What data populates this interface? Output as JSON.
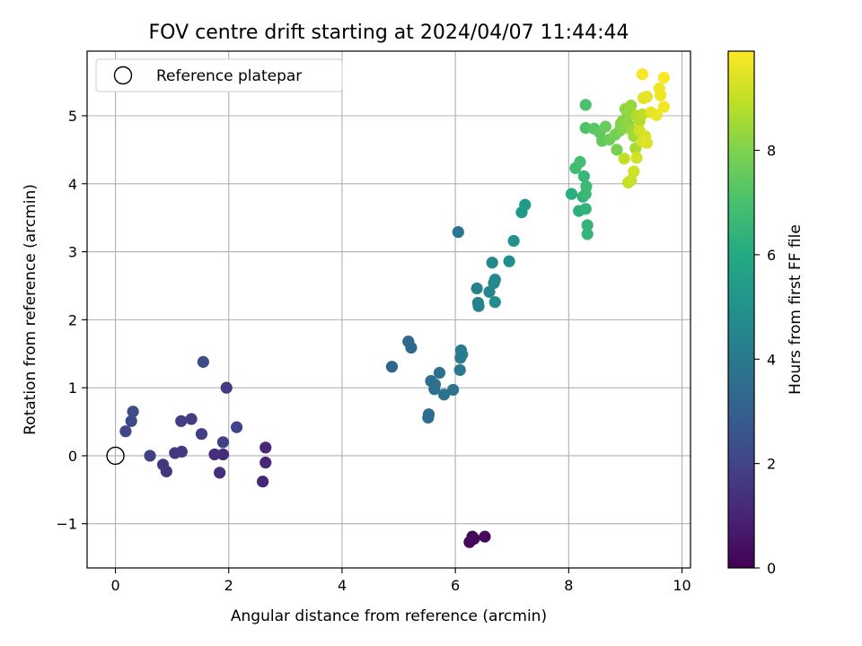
{
  "chart_data": {
    "type": "scatter",
    "title": "FOV centre drift starting at 2024/04/07 11:44:44",
    "xlabel": "Angular distance from reference (arcmin)",
    "ylabel": "Rotation from reference (arcmin)",
    "xlim": [
      -0.5,
      10.15
    ],
    "ylim": [
      -1.65,
      5.95
    ],
    "xticks": [
      0,
      2,
      4,
      6,
      8,
      10
    ],
    "yticks": [
      -1,
      0,
      1,
      2,
      3,
      4,
      5
    ],
    "xtick_labels": [
      "0",
      "2",
      "4",
      "6",
      "8",
      "10"
    ],
    "ytick_labels": [
      "−1",
      "0",
      "1",
      "2",
      "3",
      "4",
      "5"
    ],
    "grid": true,
    "legend": {
      "placement": "top-left",
      "label": "Reference platepar"
    },
    "reference_point": {
      "x": 0,
      "y": 0
    },
    "colorbar": {
      "label": "Hours from first FF file",
      "colormap": "viridis",
      "range": [
        0,
        9.9
      ],
      "ticks": [
        0,
        2,
        4,
        6,
        8
      ],
      "tick_labels": [
        "0",
        "2",
        "4",
        "6",
        "8"
      ]
    },
    "points": [
      {
        "x": 6.3,
        "y": -1.19,
        "c": 0.1
      },
      {
        "x": 6.25,
        "y": -1.27,
        "c": 0.15
      },
      {
        "x": 6.52,
        "y": -1.19,
        "c": 0.2
      },
      {
        "x": 6.33,
        "y": -1.22,
        "c": 0.25
      },
      {
        "x": 2.6,
        "y": -0.38,
        "c": 1.1
      },
      {
        "x": 2.65,
        "y": -0.1,
        "c": 1.12
      },
      {
        "x": 2.65,
        "y": 0.12,
        "c": 1.15
      },
      {
        "x": 1.9,
        "y": 0.02,
        "c": 1.25
      },
      {
        "x": 1.75,
        "y": 0.02,
        "c": 1.3
      },
      {
        "x": 1.84,
        "y": -0.25,
        "c": 1.35
      },
      {
        "x": 0.9,
        "y": -0.23,
        "c": 1.5
      },
      {
        "x": 0.84,
        "y": -0.13,
        "c": 1.55
      },
      {
        "x": 1.05,
        "y": 0.04,
        "c": 1.6
      },
      {
        "x": 1.17,
        "y": 0.06,
        "c": 1.65
      },
      {
        "x": 1.96,
        "y": 1.0,
        "c": 1.7
      },
      {
        "x": 1.16,
        "y": 0.51,
        "c": 1.75
      },
      {
        "x": 1.34,
        "y": 0.54,
        "c": 1.8
      },
      {
        "x": 1.52,
        "y": 0.32,
        "c": 1.85
      },
      {
        "x": 0.61,
        "y": 0.0,
        "c": 1.9
      },
      {
        "x": 1.9,
        "y": 0.2,
        "c": 1.95
      },
      {
        "x": 2.14,
        "y": 0.42,
        "c": 2.0
      },
      {
        "x": 0.18,
        "y": 0.36,
        "c": 2.1
      },
      {
        "x": 0.28,
        "y": 0.51,
        "c": 2.2
      },
      {
        "x": 0.31,
        "y": 0.65,
        "c": 2.3
      },
      {
        "x": 1.55,
        "y": 1.38,
        "c": 2.4
      },
      {
        "x": 4.88,
        "y": 1.31,
        "c": 3.2
      },
      {
        "x": 5.17,
        "y": 1.68,
        "c": 3.3
      },
      {
        "x": 5.22,
        "y": 1.59,
        "c": 3.35
      },
      {
        "x": 5.52,
        "y": 0.56,
        "c": 3.45
      },
      {
        "x": 5.53,
        "y": 0.61,
        "c": 3.5
      },
      {
        "x": 5.57,
        "y": 1.1,
        "c": 3.55
      },
      {
        "x": 5.63,
        "y": 0.98,
        "c": 3.6
      },
      {
        "x": 5.64,
        "y": 1.05,
        "c": 3.65
      },
      {
        "x": 5.72,
        "y": 1.22,
        "c": 3.7
      },
      {
        "x": 5.8,
        "y": 0.9,
        "c": 3.75
      },
      {
        "x": 5.96,
        "y": 0.97,
        "c": 3.8
      },
      {
        "x": 6.05,
        "y": 3.29,
        "c": 3.9
      },
      {
        "x": 6.08,
        "y": 1.26,
        "c": 3.95
      },
      {
        "x": 6.09,
        "y": 1.44,
        "c": 4.0
      },
      {
        "x": 6.1,
        "y": 1.55,
        "c": 4.05
      },
      {
        "x": 6.12,
        "y": 1.49,
        "c": 4.1
      },
      {
        "x": 6.38,
        "y": 2.46,
        "c": 4.3
      },
      {
        "x": 6.4,
        "y": 2.25,
        "c": 4.35
      },
      {
        "x": 6.41,
        "y": 2.2,
        "c": 4.4
      },
      {
        "x": 6.6,
        "y": 2.41,
        "c": 4.5
      },
      {
        "x": 6.65,
        "y": 2.84,
        "c": 4.6
      },
      {
        "x": 6.68,
        "y": 2.54,
        "c": 4.65
      },
      {
        "x": 6.7,
        "y": 2.59,
        "c": 4.7
      },
      {
        "x": 6.7,
        "y": 2.26,
        "c": 4.75
      },
      {
        "x": 6.95,
        "y": 2.86,
        "c": 4.9
      },
      {
        "x": 7.03,
        "y": 3.16,
        "c": 5.0
      },
      {
        "x": 7.17,
        "y": 3.58,
        "c": 5.3
      },
      {
        "x": 7.23,
        "y": 3.69,
        "c": 5.4
      },
      {
        "x": 8.05,
        "y": 3.85,
        "c": 6.2
      },
      {
        "x": 8.18,
        "y": 3.6,
        "c": 6.3
      },
      {
        "x": 8.25,
        "y": 3.81,
        "c": 6.35
      },
      {
        "x": 8.3,
        "y": 3.63,
        "c": 6.4
      },
      {
        "x": 8.33,
        "y": 3.39,
        "c": 6.45
      },
      {
        "x": 8.33,
        "y": 3.26,
        "c": 6.5
      },
      {
        "x": 8.27,
        "y": 4.11,
        "c": 6.6
      },
      {
        "x": 8.3,
        "y": 3.85,
        "c": 6.65
      },
      {
        "x": 8.31,
        "y": 3.96,
        "c": 6.7
      },
      {
        "x": 8.12,
        "y": 4.23,
        "c": 6.8
      },
      {
        "x": 8.2,
        "y": 4.32,
        "c": 6.9
      },
      {
        "x": 8.3,
        "y": 5.16,
        "c": 7.0
      },
      {
        "x": 8.3,
        "y": 4.82,
        "c": 7.1
      },
      {
        "x": 8.45,
        "y": 4.81,
        "c": 7.3
      },
      {
        "x": 8.55,
        "y": 4.75,
        "c": 7.4
      },
      {
        "x": 8.59,
        "y": 4.63,
        "c": 7.5
      },
      {
        "x": 8.65,
        "y": 4.84,
        "c": 7.6
      },
      {
        "x": 8.72,
        "y": 4.65,
        "c": 7.7
      },
      {
        "x": 8.82,
        "y": 4.72,
        "c": 7.8
      },
      {
        "x": 8.85,
        "y": 4.5,
        "c": 7.85
      },
      {
        "x": 8.9,
        "y": 4.78,
        "c": 7.9
      },
      {
        "x": 8.92,
        "y": 4.88,
        "c": 8.0
      },
      {
        "x": 8.95,
        "y": 4.92,
        "c": 8.05
      },
      {
        "x": 8.98,
        "y": 4.82,
        "c": 8.1
      },
      {
        "x": 9.0,
        "y": 5.1,
        "c": 8.15
      },
      {
        "x": 9.03,
        "y": 4.98,
        "c": 8.2
      },
      {
        "x": 9.05,
        "y": 4.87,
        "c": 8.25
      },
      {
        "x": 9.08,
        "y": 5.06,
        "c": 8.3
      },
      {
        "x": 9.1,
        "y": 5.15,
        "c": 8.35
      },
      {
        "x": 9.12,
        "y": 4.78,
        "c": 8.4
      },
      {
        "x": 9.15,
        "y": 4.7,
        "c": 8.5
      },
      {
        "x": 9.18,
        "y": 4.52,
        "c": 8.6
      },
      {
        "x": 9.2,
        "y": 5.0,
        "c": 8.7
      },
      {
        "x": 9.25,
        "y": 4.92,
        "c": 8.8
      },
      {
        "x": 9.3,
        "y": 5.02,
        "c": 8.9
      },
      {
        "x": 8.98,
        "y": 4.37,
        "c": 9.0
      },
      {
        "x": 9.05,
        "y": 4.02,
        "c": 9.05
      },
      {
        "x": 9.1,
        "y": 4.05,
        "c": 9.1
      },
      {
        "x": 9.15,
        "y": 4.18,
        "c": 9.15
      },
      {
        "x": 9.2,
        "y": 4.38,
        "c": 9.2
      },
      {
        "x": 9.25,
        "y": 4.78,
        "c": 9.25
      },
      {
        "x": 9.3,
        "y": 4.62,
        "c": 9.3
      },
      {
        "x": 9.35,
        "y": 4.7,
        "c": 9.35
      },
      {
        "x": 9.38,
        "y": 4.6,
        "c": 9.4
      },
      {
        "x": 9.32,
        "y": 5.26,
        "c": 9.45
      },
      {
        "x": 9.38,
        "y": 5.28,
        "c": 9.5
      },
      {
        "x": 9.45,
        "y": 5.05,
        "c": 9.55
      },
      {
        "x": 9.55,
        "y": 5.01,
        "c": 9.6
      },
      {
        "x": 9.6,
        "y": 5.4,
        "c": 9.65
      },
      {
        "x": 9.62,
        "y": 5.3,
        "c": 9.7
      },
      {
        "x": 9.68,
        "y": 5.13,
        "c": 9.75
      },
      {
        "x": 9.3,
        "y": 5.61,
        "c": 9.8
      },
      {
        "x": 9.68,
        "y": 5.56,
        "c": 9.85
      }
    ]
  }
}
